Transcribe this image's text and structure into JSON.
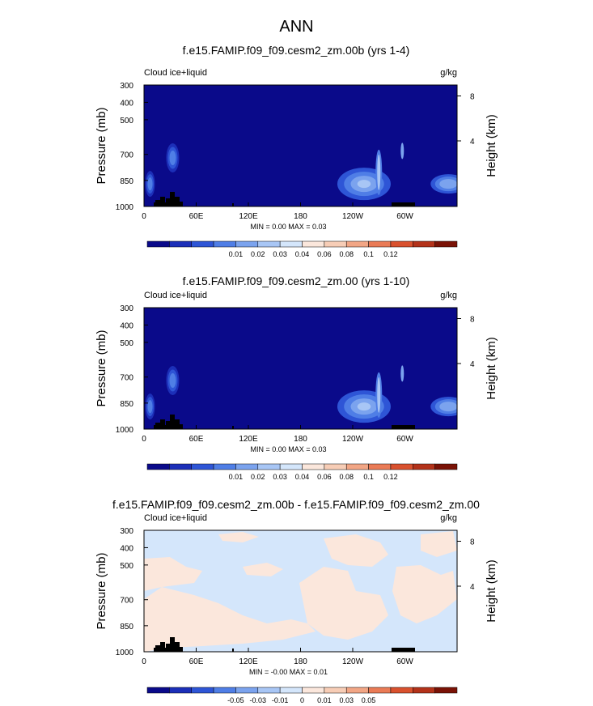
{
  "main_title": "ANN",
  "chart_data": [
    {
      "type": "heatmap",
      "title": "f.e15.FAMIP.f09_f09.cesm2_zm.00b (yrs 1-4)",
      "left_label": "Cloud ice+liquid",
      "units": "g/kg",
      "ylabel": "Pressure (mb)",
      "y2label": "Height (km)",
      "x_ticks": [
        "0",
        "60E",
        "120E",
        "180",
        "120W",
        "60W"
      ],
      "y_ticks": [
        "300",
        "400",
        "500",
        "700",
        "850",
        "1000"
      ],
      "y2_ticks": [
        "8",
        "4"
      ],
      "min_max": "MIN =   0.00  MAX =   0.03",
      "colorbar_labels": [
        "0.01",
        "0.02",
        "0.03",
        "0.04",
        "0.06",
        "0.08",
        "0.1",
        "0.12"
      ],
      "colorbar_colors": [
        "#0a0a8a",
        "#1c2fb8",
        "#2e55d6",
        "#4f7ee6",
        "#7ba3ee",
        "#a8c6f5",
        "#d4e6fb",
        "#fbe7dc",
        "#f7cdb6",
        "#f2a685",
        "#ea7b56",
        "#d9512e",
        "#b3321a",
        "#7a1206"
      ],
      "background_color": "#0a0a8a",
      "features": [
        {
          "lon": 7,
          "pressure": 870,
          "value": 0.012
        },
        {
          "lon": 33,
          "pressure": 720,
          "value": 0.012
        },
        {
          "lon": 253,
          "pressure": 870,
          "value": 0.03
        },
        {
          "lon": 350,
          "pressure": 870,
          "value": 0.018
        }
      ]
    },
    {
      "type": "heatmap",
      "title": "f.e15.FAMIP.f09_f09.cesm2_zm.00 (yrs 1-10)",
      "left_label": "Cloud ice+liquid",
      "units": "g/kg",
      "ylabel": "Pressure (mb)",
      "y2label": "Height (km)",
      "x_ticks": [
        "0",
        "60E",
        "120E",
        "180",
        "120W",
        "60W"
      ],
      "y_ticks": [
        "300",
        "400",
        "500",
        "700",
        "850",
        "1000"
      ],
      "y2_ticks": [
        "8",
        "4"
      ],
      "min_max": "MIN =   0.00  MAX =   0.03",
      "colorbar_labels": [
        "0.01",
        "0.02",
        "0.03",
        "0.04",
        "0.06",
        "0.08",
        "0.1",
        "0.12"
      ],
      "colorbar_colors": [
        "#0a0a8a",
        "#1c2fb8",
        "#2e55d6",
        "#4f7ee6",
        "#7ba3ee",
        "#a8c6f5",
        "#d4e6fb",
        "#fbe7dc",
        "#f7cdb6",
        "#f2a685",
        "#ea7b56",
        "#d9512e",
        "#b3321a",
        "#7a1206"
      ],
      "background_color": "#0a0a8a",
      "features": [
        {
          "lon": 7,
          "pressure": 870,
          "value": 0.012
        },
        {
          "lon": 33,
          "pressure": 720,
          "value": 0.012
        },
        {
          "lon": 253,
          "pressure": 870,
          "value": 0.03
        },
        {
          "lon": 350,
          "pressure": 870,
          "value": 0.018
        }
      ]
    },
    {
      "type": "heatmap",
      "title": "f.e15.FAMIP.f09_f09.cesm2_zm.00b - f.e15.FAMIP.f09_f09.cesm2_zm.00",
      "left_label": "Cloud ice+liquid",
      "units": "g/kg",
      "ylabel": "Pressure (mb)",
      "y2label": "Height (km)",
      "x_ticks": [
        "0",
        "60E",
        "120E",
        "180",
        "120W",
        "60W"
      ],
      "y_ticks": [
        "300",
        "400",
        "500",
        "700",
        "850",
        "1000"
      ],
      "y2_ticks": [
        "8",
        "4"
      ],
      "min_max": "MIN =  -0.00  MAX =   0.01",
      "colorbar_labels": [
        "-0.05",
        "-0.03",
        "-0.01",
        "0",
        "0.01",
        "0.03",
        "0.05"
      ],
      "colorbar_colors": [
        "#0a0a8a",
        "#1c2fb8",
        "#2e55d6",
        "#4f7ee6",
        "#7ba3ee",
        "#a8c6f5",
        "#d4e6fb",
        "#fbe7dc",
        "#f7cdb6",
        "#f2a685",
        "#ea7b56",
        "#d9512e",
        "#b3321a",
        "#7a1206"
      ],
      "background_color": "#d4e6fb",
      "features": [
        {
          "lon": 60,
          "pressure": 850,
          "value": 0.005
        },
        {
          "lon": 170,
          "pressure": 900,
          "value": 0.005
        },
        {
          "lon": 320,
          "pressure": 700,
          "value": 0.005
        }
      ]
    }
  ]
}
